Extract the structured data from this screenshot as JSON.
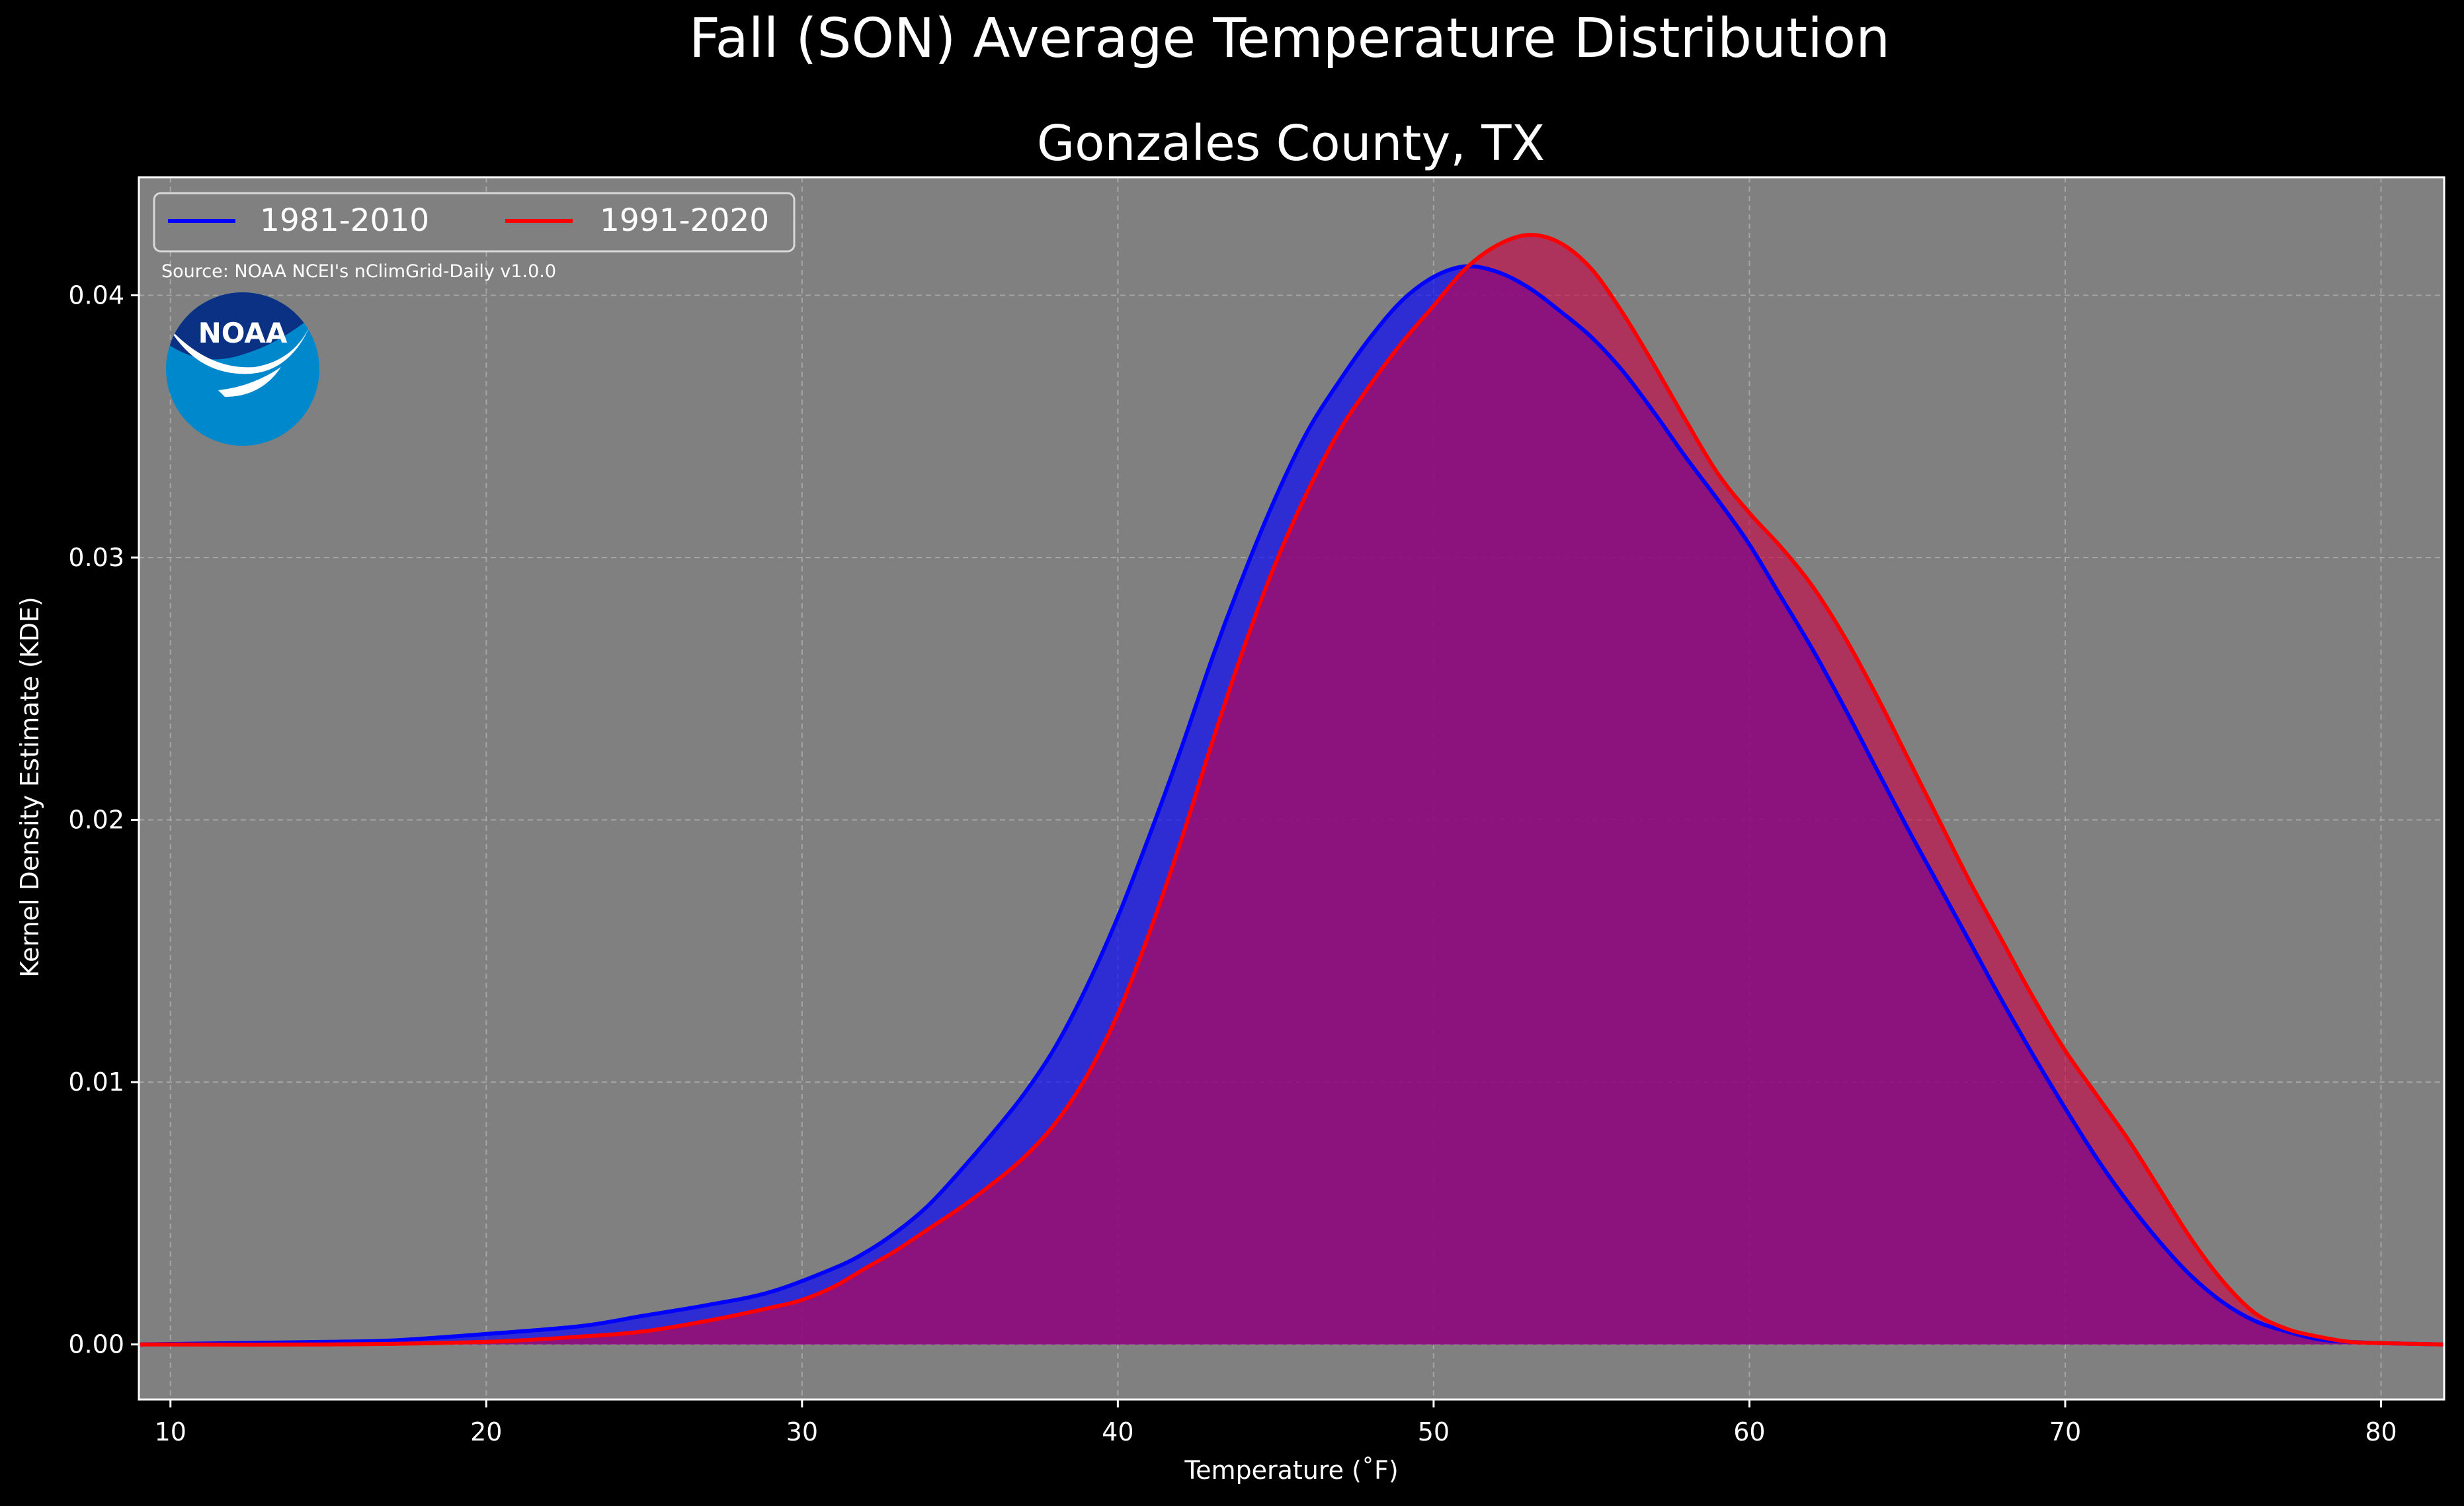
{
  "title": "Fall (SON) Average Temperature Distribution",
  "subtitle": "Gonzales County, TX",
  "source_note": "Source: NOAA NCEI's nClimGrid-Daily v1.0.0",
  "logo": {
    "text": "NOAA",
    "icon": "noaa-logo-icon"
  },
  "colors": {
    "background": "#000000",
    "plot_background": "#808080",
    "text": "#ffffff",
    "series_1981_2010": "#0000ff",
    "series_1991_2020": "#ff0000",
    "fill_1981_2010": "#0000ff",
    "fill_1991_2020": "#cc0044",
    "logo_dark": "#0a3183",
    "logo_light": "#0088cc"
  },
  "chart_data": {
    "type": "area",
    "title": "Fall (SON) Average Temperature Distribution",
    "subtitle": "Gonzales County, TX",
    "xlabel": "Temperature ($^\\circ$F)",
    "xlabel_display": "Temperature (˚F)",
    "ylabel": "Kernel Density Estimate (KDE)",
    "xlim": [
      9,
      82
    ],
    "ylim": [
      -0.0021,
      0.0445
    ],
    "xticks": [
      10,
      20,
      30,
      40,
      50,
      60,
      70,
      80
    ],
    "xtick_labels": [
      "10",
      "20",
      "30",
      "40",
      "50",
      "60",
      "70",
      "80"
    ],
    "yticks": [
      0.0,
      0.01,
      0.02,
      0.03,
      0.04
    ],
    "ytick_labels": [
      "0.00",
      "0.01",
      "0.02",
      "0.03",
      "0.04"
    ],
    "grid": true,
    "legend_placement": "top-left",
    "series": [
      {
        "name": "1981-2010",
        "x": [
          9,
          12,
          15,
          17,
          20,
          23,
          25,
          27,
          29,
          31,
          32,
          33,
          34,
          35,
          36,
          37,
          38,
          39,
          40,
          41,
          42,
          43,
          44,
          45,
          46,
          47,
          48,
          49,
          50,
          51,
          52,
          53,
          54,
          55,
          56,
          57,
          58,
          59,
          60,
          61,
          62,
          63,
          64,
          65,
          66,
          67,
          68,
          69,
          70,
          71,
          72,
          73,
          74,
          75,
          76,
          77,
          78,
          79,
          80,
          82
        ],
        "y": [
          0.0,
          5e-05,
          0.0001,
          0.00015,
          0.0004,
          0.0007,
          0.0011,
          0.0015,
          0.002,
          0.0029,
          0.0035,
          0.0043,
          0.0053,
          0.0066,
          0.008,
          0.0095,
          0.0113,
          0.0136,
          0.0163,
          0.0194,
          0.0227,
          0.0262,
          0.0294,
          0.0323,
          0.0348,
          0.0367,
          0.0384,
          0.0398,
          0.0407,
          0.0411,
          0.0409,
          0.0403,
          0.0394,
          0.0384,
          0.0371,
          0.0355,
          0.0338,
          0.0322,
          0.0305,
          0.0285,
          0.0265,
          0.0243,
          0.022,
          0.0197,
          0.0175,
          0.0153,
          0.0131,
          0.011,
          0.009,
          0.0071,
          0.0054,
          0.0039,
          0.0026,
          0.0016,
          0.0009,
          0.0005,
          0.0002,
          0.0001,
          5e-05,
          0.0
        ]
      },
      {
        "name": "1991-2020",
        "x": [
          9,
          15,
          20,
          23,
          25,
          27,
          29,
          30,
          31,
          32,
          33,
          34,
          35,
          36,
          37,
          38,
          39,
          40,
          41,
          42,
          43,
          44,
          45,
          46,
          47,
          48,
          49,
          50,
          51,
          52,
          53,
          54,
          55,
          56,
          57,
          58,
          59,
          60,
          61,
          62,
          63,
          64,
          65,
          66,
          67,
          68,
          69,
          70,
          71,
          72,
          73,
          74,
          75,
          76,
          77,
          78,
          79,
          80,
          82
        ],
        "y": [
          0.0,
          0.0,
          0.0001,
          0.0003,
          0.0005,
          0.0009,
          0.0014,
          0.0017,
          0.0022,
          0.0029,
          0.0036,
          0.0044,
          0.0052,
          0.0061,
          0.0071,
          0.0084,
          0.0102,
          0.0126,
          0.0157,
          0.0192,
          0.023,
          0.0266,
          0.0298,
          0.0325,
          0.0348,
          0.0366,
          0.0382,
          0.0396,
          0.041,
          0.0419,
          0.0423,
          0.042,
          0.041,
          0.0393,
          0.0373,
          0.0352,
          0.0332,
          0.0317,
          0.0304,
          0.0289,
          0.027,
          0.0248,
          0.0224,
          0.02,
          0.0176,
          0.0154,
          0.0132,
          0.0112,
          0.0095,
          0.0078,
          0.0059,
          0.004,
          0.0024,
          0.0012,
          0.0006,
          0.0003,
          0.0001,
          5e-05,
          0.0
        ]
      }
    ]
  }
}
